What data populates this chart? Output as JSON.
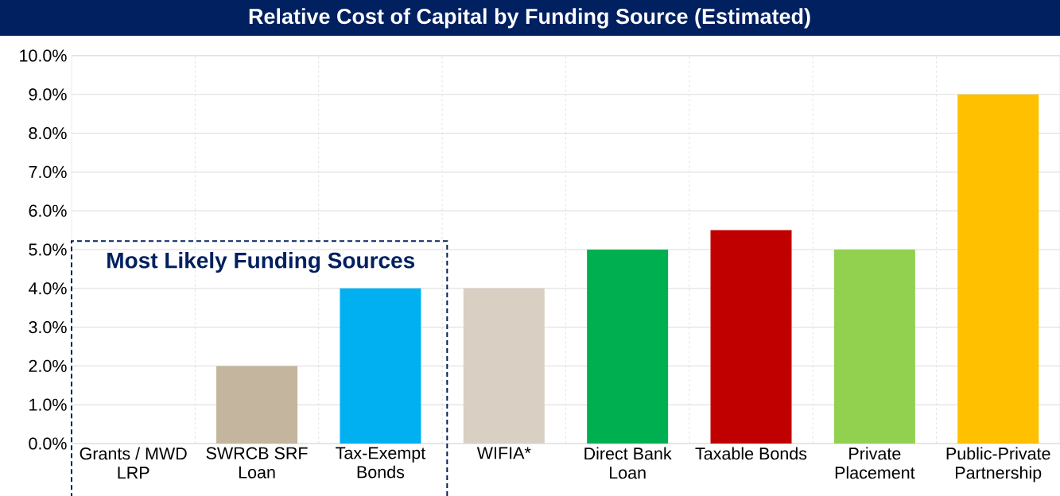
{
  "chart_data": {
    "type": "bar",
    "title": "Relative Cost of Capital by Funding Source (Estimated)",
    "categories": [
      "Grants / MWD LRP",
      "SWRCB SRF Loan",
      "Tax-Exempt Bonds",
      "WIFIA*",
      "Direct Bank Loan",
      "Taxable Bonds",
      "Private Placement",
      "Public-Private Partnership"
    ],
    "values": [
      0,
      2,
      4,
      4,
      5,
      5.5,
      5,
      9
    ],
    "colors": [
      "#c4b59f",
      "#c4b59f",
      "#00b0f0",
      "#d9cfc3",
      "#00b050",
      "#c00000",
      "#92d050",
      "#ffc000"
    ],
    "ylim": [
      0,
      10
    ],
    "yticks": [
      {
        "value": 0,
        "label": "0.0%"
      },
      {
        "value": 1,
        "label": "1.0%"
      },
      {
        "value": 2,
        "label": "2.0%"
      },
      {
        "value": 3,
        "label": "3.0%"
      },
      {
        "value": 4,
        "label": "4.0%"
      },
      {
        "value": 5,
        "label": "5.0%"
      },
      {
        "value": 6,
        "label": "6.0%"
      },
      {
        "value": 7,
        "label": "7.0%"
      },
      {
        "value": 8,
        "label": "8.0%"
      },
      {
        "value": 9,
        "label": "9.0%"
      },
      {
        "value": 10,
        "label": "10.0%"
      }
    ],
    "grid": true,
    "annotations": [
      "Most Likely Funding Sources"
    ]
  }
}
